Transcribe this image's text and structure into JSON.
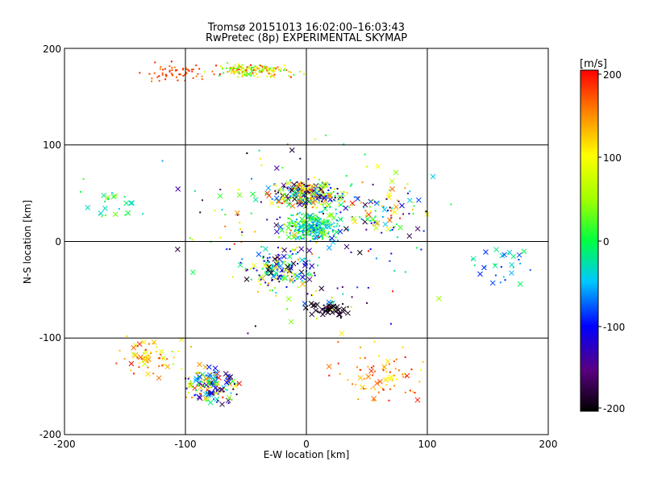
{
  "chart_data": {
    "type": "scatter",
    "title": "Tromsø 20151013 16:02:00–16:03:43",
    "subtitle": "RwPretec (8p) EXPERIMENTAL SKYMAP",
    "xlabel": "E-W location [km]",
    "ylabel": "N-S location [km]",
    "xlim": [
      -200,
      200
    ],
    "ylim": [
      -200,
      200
    ],
    "x_ticks": [
      "-200",
      "-100",
      "0",
      "100",
      "200"
    ],
    "y_ticks": [
      "-200",
      "-100",
      "0",
      "100",
      "200"
    ],
    "grid": true,
    "colorbar": {
      "label": "[m/s]",
      "min": -200,
      "max": 200,
      "ticks": [
        "200",
        "100",
        "0",
        "-100",
        "-200"
      ],
      "colormap": "black-purple-blue-cyan-green-yellow-orange-red",
      "placement": "right"
    },
    "point_styles": [
      "dot (small velocity marker)",
      "cross (x marker)"
    ],
    "clusters": [
      {
        "center": [
          -45,
          178
        ],
        "spread": [
          35,
          8
        ],
        "count": 160,
        "vmin": 0,
        "vmax": 200,
        "cross_ratio": 0.02
      },
      {
        "center": [
          -105,
          175
        ],
        "spread": [
          30,
          10
        ],
        "count": 60,
        "vmin": 150,
        "vmax": 200,
        "cross_ratio": 0.02
      },
      {
        "center": [
          0,
          50
        ],
        "spread": [
          30,
          14
        ],
        "count": 280,
        "vmin": -200,
        "vmax": 200,
        "cross_ratio": 0.35
      },
      {
        "center": [
          5,
          15
        ],
        "spread": [
          22,
          14
        ],
        "count": 260,
        "vmin": -80,
        "vmax": 50,
        "cross_ratio": 0.2
      },
      {
        "center": [
          -20,
          -30
        ],
        "spread": [
          28,
          22
        ],
        "count": 150,
        "vmin": -200,
        "vmax": 150,
        "cross_ratio": 0.35
      },
      {
        "center": [
          20,
          -70
        ],
        "spread": [
          18,
          8
        ],
        "count": 50,
        "vmin": -200,
        "vmax": -180,
        "cross_ratio": 0.6
      },
      {
        "center": [
          -80,
          -150
        ],
        "spread": [
          22,
          20
        ],
        "count": 160,
        "vmin": -200,
        "vmax": 200,
        "cross_ratio": 0.4
      },
      {
        "center": [
          -130,
          -120
        ],
        "spread": [
          25,
          20
        ],
        "count": 60,
        "vmin": 50,
        "vmax": 200,
        "cross_ratio": 0.4
      },
      {
        "center": [
          60,
          -140
        ],
        "spread": [
          40,
          30
        ],
        "count": 80,
        "vmin": 100,
        "vmax": 200,
        "cross_ratio": 0.2
      },
      {
        "center": [
          -160,
          40
        ],
        "spread": [
          25,
          20
        ],
        "count": 25,
        "vmin": -50,
        "vmax": 50,
        "cross_ratio": 0.4
      },
      {
        "center": [
          160,
          -25
        ],
        "spread": [
          25,
          20
        ],
        "count": 30,
        "vmin": -100,
        "vmax": 0,
        "cross_ratio": 0.5
      },
      {
        "center": [
          60,
          30
        ],
        "spread": [
          40,
          25
        ],
        "count": 90,
        "vmin": -200,
        "vmax": 200,
        "cross_ratio": 0.3
      },
      {
        "center": [
          0,
          0
        ],
        "spread": [
          110,
          110
        ],
        "count": 180,
        "vmin": -200,
        "vmax": 200,
        "cross_ratio": 0.25
      }
    ]
  }
}
